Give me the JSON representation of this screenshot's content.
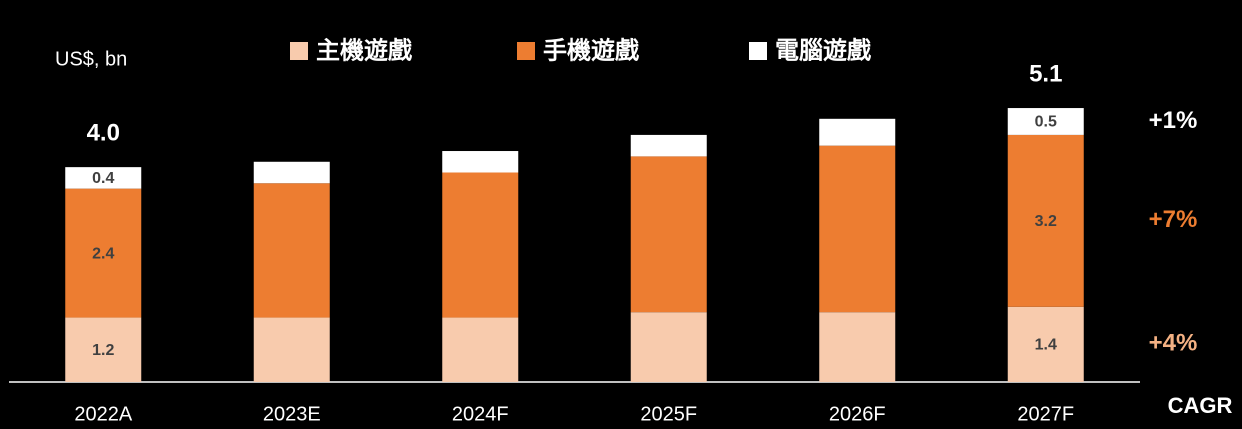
{
  "chart_data": {
    "type": "stacked_bar",
    "y_label": "US$, bn",
    "categories": [
      "2022A",
      "2023E",
      "2024F",
      "2025F",
      "2026F",
      "2027F"
    ],
    "series": [
      {
        "name": "主機遊戲",
        "color": "#f8cbad",
        "values": [
          1.2,
          1.2,
          1.2,
          1.3,
          1.3,
          1.4
        ],
        "value_labels": [
          "1.2",
          null,
          null,
          null,
          null,
          "1.4"
        ],
        "cagr": 4,
        "cagr_label": "+4%",
        "cagr_color": "#f4b183"
      },
      {
        "name": "手機遊戲",
        "color": "#ed7d31",
        "values": [
          2.4,
          2.5,
          2.7,
          2.9,
          3.1,
          3.2
        ],
        "value_labels": [
          "2.4",
          null,
          null,
          null,
          null,
          "3.2"
        ],
        "cagr": 7,
        "cagr_label": "+7%",
        "cagr_color": "#ed7d31"
      },
      {
        "name": "電腦遊戲",
        "color": "#ffffff",
        "values": [
          0.4,
          0.4,
          0.4,
          0.4,
          0.5,
          0.5
        ],
        "value_labels": [
          "0.4",
          null,
          null,
          null,
          null,
          "0.5"
        ],
        "cagr": 1,
        "cagr_label": "+1%",
        "cagr_color": "#ffffff"
      }
    ],
    "totals": [
      4.0,
      null,
      null,
      null,
      null,
      5.1
    ],
    "total_labels": [
      "4.0",
      null,
      null,
      null,
      null,
      "5.1"
    ],
    "cagr_title": "CAGR",
    "ylim": [
      0,
      7
    ]
  }
}
